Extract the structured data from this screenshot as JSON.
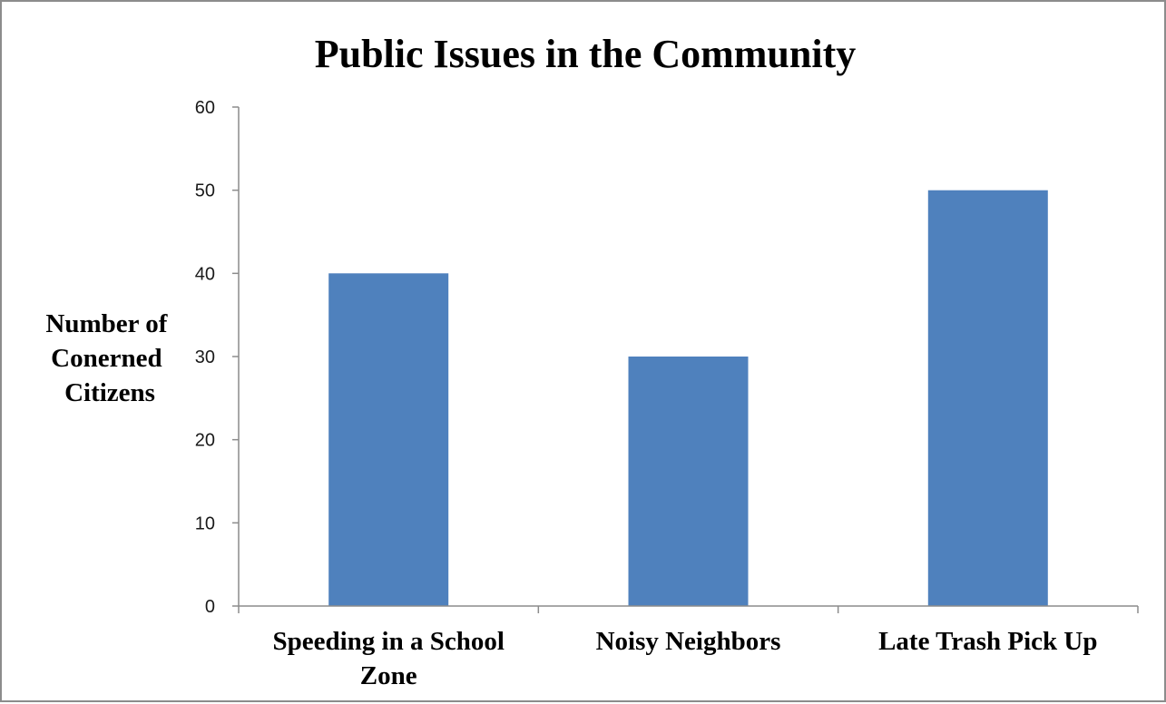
{
  "chart_data": {
    "type": "bar",
    "title": "Public Issues in the Community",
    "ylabel_lines": [
      "Number of",
      "Conerned",
      "Citizens"
    ],
    "xlabel": "",
    "categories": [
      [
        "Speeding in a School",
        "Zone"
      ],
      [
        "Noisy Neighbors"
      ],
      [
        "Late Trash Pick Up"
      ]
    ],
    "values": [
      40,
      30,
      50
    ],
    "ylim": [
      0,
      60
    ],
    "yticks": [
      0,
      10,
      20,
      30,
      40,
      50,
      60
    ],
    "grid": false,
    "legend": "none",
    "bar_color": "#4f81bd"
  }
}
